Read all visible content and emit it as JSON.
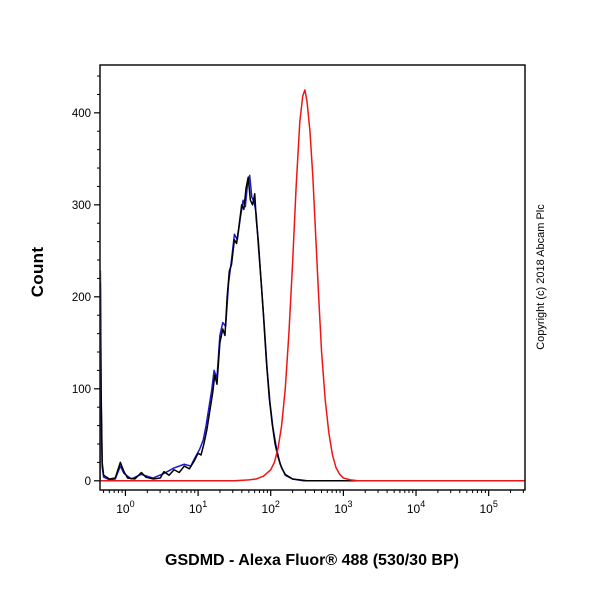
{
  "figure": {
    "ylabel": "Count",
    "xlabel": "GSDMD - Alexa Fluor® 488 (530/30 BP)",
    "copyright": "Copyright (c) 2018 Abcam Plc",
    "background": "#ffffff",
    "axis_color": "#000000"
  },
  "chart_data": {
    "type": "line",
    "subtype": "flow-cytometry-histogram",
    "title": "",
    "xlabel": "GSDMD - Alexa Fluor® 488 (530/30 BP)",
    "ylabel": "Count",
    "x_scale": "log10",
    "x_ticks_exponents": [
      0,
      1,
      2,
      3,
      4,
      5
    ],
    "y_ticks": [
      0,
      100,
      200,
      300,
      400
    ],
    "xlim_log10": [
      -0.35,
      5.5
    ],
    "ylim": [
      -10,
      452
    ],
    "grid": false,
    "legend": "none",
    "series": [
      {
        "name": "blue-curve",
        "color": "#1a1acc",
        "width": 1.5,
        "points": [
          [
            -0.35,
            0
          ],
          [
            -0.345,
            215
          ],
          [
            -0.335,
            88
          ],
          [
            -0.32,
            15
          ],
          [
            -0.3,
            4
          ],
          [
            -0.22,
            1
          ],
          [
            -0.14,
            2
          ],
          [
            -0.07,
            16
          ],
          [
            -0.02,
            8
          ],
          [
            0.08,
            2
          ],
          [
            0.22,
            7
          ],
          [
            0.38,
            3
          ],
          [
            0.53,
            8
          ],
          [
            0.67,
            14
          ],
          [
            0.81,
            18
          ],
          [
            0.9,
            16
          ],
          [
            0.95,
            24
          ],
          [
            1.02,
            34
          ],
          [
            1.07,
            44
          ],
          [
            1.11,
            60
          ],
          [
            1.15,
            80
          ],
          [
            1.19,
            100
          ],
          [
            1.22,
            120
          ],
          [
            1.26,
            112
          ],
          [
            1.3,
            158
          ],
          [
            1.34,
            172
          ],
          [
            1.38,
            168
          ],
          [
            1.42,
            215
          ],
          [
            1.46,
            240
          ],
          [
            1.5,
            268
          ],
          [
            1.54,
            262
          ],
          [
            1.58,
            285
          ],
          [
            1.62,
            305
          ],
          [
            1.65,
            298
          ],
          [
            1.68,
            322
          ],
          [
            1.71,
            332
          ],
          [
            1.74,
            308
          ],
          [
            1.77,
            304
          ],
          [
            1.8,
            290
          ],
          [
            1.83,
            255
          ],
          [
            1.87,
            215
          ],
          [
            1.91,
            170
          ],
          [
            1.95,
            122
          ],
          [
            1.99,
            85
          ],
          [
            2.03,
            58
          ],
          [
            2.08,
            35
          ],
          [
            2.13,
            18
          ],
          [
            2.2,
            6
          ],
          [
            2.3,
            2
          ],
          [
            2.45,
            0
          ],
          [
            5.5,
            0
          ]
        ]
      },
      {
        "name": "black-curve",
        "color": "#000000",
        "width": 1.5,
        "points": [
          [
            -0.35,
            0
          ],
          [
            -0.345,
            228
          ],
          [
            -0.335,
            100
          ],
          [
            -0.32,
            20
          ],
          [
            -0.3,
            6
          ],
          [
            -0.22,
            2
          ],
          [
            -0.14,
            3
          ],
          [
            -0.07,
            20
          ],
          [
            -0.02,
            10
          ],
          [
            0.03,
            3
          ],
          [
            0.13,
            2
          ],
          [
            0.22,
            9
          ],
          [
            0.28,
            4
          ],
          [
            0.38,
            2
          ],
          [
            0.48,
            3
          ],
          [
            0.53,
            10
          ],
          [
            0.6,
            6
          ],
          [
            0.67,
            12
          ],
          [
            0.74,
            9
          ],
          [
            0.81,
            16
          ],
          [
            0.88,
            13
          ],
          [
            0.95,
            22
          ],
          [
            1.0,
            30
          ],
          [
            1.04,
            28
          ],
          [
            1.08,
            40
          ],
          [
            1.12,
            55
          ],
          [
            1.16,
            75
          ],
          [
            1.2,
            95
          ],
          [
            1.23,
            115
          ],
          [
            1.26,
            105
          ],
          [
            1.3,
            150
          ],
          [
            1.34,
            165
          ],
          [
            1.37,
            158
          ],
          [
            1.4,
            200
          ],
          [
            1.43,
            228
          ],
          [
            1.46,
            235
          ],
          [
            1.5,
            262
          ],
          [
            1.53,
            258
          ],
          [
            1.56,
            275
          ],
          [
            1.6,
            300
          ],
          [
            1.63,
            295
          ],
          [
            1.66,
            318
          ],
          [
            1.69,
            330
          ],
          [
            1.72,
            305
          ],
          [
            1.75,
            300
          ],
          [
            1.78,
            312
          ],
          [
            1.8,
            285
          ],
          [
            1.83,
            260
          ],
          [
            1.86,
            225
          ],
          [
            1.9,
            180
          ],
          [
            1.94,
            130
          ],
          [
            1.98,
            90
          ],
          [
            2.02,
            62
          ],
          [
            2.06,
            40
          ],
          [
            2.1,
            26
          ],
          [
            2.15,
            14
          ],
          [
            2.2,
            7
          ],
          [
            2.3,
            2
          ],
          [
            2.4,
            1
          ],
          [
            2.5,
            0
          ],
          [
            5.5,
            0
          ]
        ]
      },
      {
        "name": "red-curve",
        "color": "#ee1515",
        "width": 1.5,
        "points": [
          [
            -0.35,
            0
          ],
          [
            1.5,
            0
          ],
          [
            1.7,
            1
          ],
          [
            1.8,
            2
          ],
          [
            1.9,
            5
          ],
          [
            2.0,
            12
          ],
          [
            2.05,
            20
          ],
          [
            2.1,
            35
          ],
          [
            2.15,
            60
          ],
          [
            2.2,
            100
          ],
          [
            2.25,
            160
          ],
          [
            2.3,
            235
          ],
          [
            2.35,
            320
          ],
          [
            2.4,
            390
          ],
          [
            2.44,
            418
          ],
          [
            2.47,
            425
          ],
          [
            2.5,
            412
          ],
          [
            2.54,
            380
          ],
          [
            2.58,
            330
          ],
          [
            2.62,
            265
          ],
          [
            2.66,
            200
          ],
          [
            2.7,
            140
          ],
          [
            2.75,
            88
          ],
          [
            2.8,
            52
          ],
          [
            2.85,
            28
          ],
          [
            2.9,
            14
          ],
          [
            2.95,
            7
          ],
          [
            3.0,
            3
          ],
          [
            3.1,
            1
          ],
          [
            3.2,
            0
          ],
          [
            5.5,
            0
          ]
        ]
      }
    ]
  }
}
